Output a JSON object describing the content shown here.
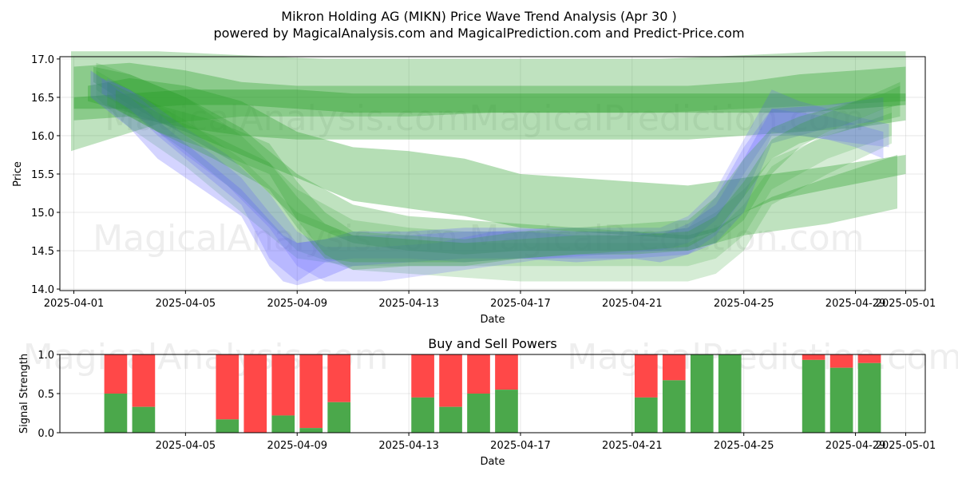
{
  "chart_data": [
    {
      "type": "area",
      "title": "Mikron Holding AG (MIKN) Price Wave Trend Analysis (Apr 30 )",
      "subtitle": "powered by MagicalAnalysis.com and MagicalPrediction.com and Predict-Price.com",
      "xlabel": "Date",
      "ylabel": "Price",
      "x_range_days": [
        -0.5,
        30.5
      ],
      "ylim": [
        13.98,
        17.03
      ],
      "x_ticks": [
        {
          "day": 0,
          "label": "2025-04-01"
        },
        {
          "day": 4,
          "label": "2025-04-05"
        },
        {
          "day": 8,
          "label": "2025-04-09"
        },
        {
          "day": 12,
          "label": "2025-04-13"
        },
        {
          "day": 16,
          "label": "2025-04-17"
        },
        {
          "day": 20,
          "label": "2025-04-21"
        },
        {
          "day": 24,
          "label": "2025-04-25"
        },
        {
          "day": 28,
          "label": "2025-04-29"
        },
        {
          "day": 29.8,
          "label": "2025-05-01"
        }
      ],
      "y_ticks": [
        {
          "value": 14.0,
          "label": "14.0"
        },
        {
          "value": 14.5,
          "label": "14.5"
        },
        {
          "value": 15.0,
          "label": "15.0"
        },
        {
          "value": 15.5,
          "label": "15.5"
        },
        {
          "value": 16.0,
          "label": "16.0"
        },
        {
          "value": 16.5,
          "label": "16.5"
        },
        {
          "value": 17.0,
          "label": "17.0"
        }
      ],
      "grid": true,
      "watermarks": [
        "MagicalAnalysis.com",
        "MagicalPrediction.com",
        "MagicalAnalysis.com",
        "MagicalPrediction.com"
      ],
      "bands": [
        {
          "color": "green",
          "opacity": 0.35,
          "x": [
            0,
            2,
            4,
            6,
            8,
            10,
            12,
            14,
            16,
            18,
            20,
            22,
            24,
            26,
            28,
            29.8
          ],
          "low": [
            16.2,
            16.25,
            16.1,
            16.0,
            15.95,
            15.95,
            15.95,
            15.95,
            15.95,
            15.95,
            15.95,
            15.95,
            16.0,
            16.05,
            16.1,
            16.2
          ],
          "high": [
            16.9,
            16.95,
            16.85,
            16.7,
            16.65,
            16.65,
            16.65,
            16.65,
            16.65,
            16.65,
            16.65,
            16.65,
            16.7,
            16.8,
            16.85,
            16.9
          ]
        },
        {
          "color": "green",
          "opacity": 0.3,
          "x": [
            -0.1,
            3,
            6,
            9,
            12,
            15,
            18,
            21,
            24,
            27,
            29.8
          ],
          "low": [
            15.8,
            16.15,
            16.25,
            16.25,
            16.25,
            16.3,
            16.3,
            16.3,
            16.35,
            16.4,
            16.45
          ],
          "high": [
            17.1,
            17.1,
            17.05,
            17.0,
            17.0,
            17.0,
            17.0,
            17.0,
            17.05,
            17.1,
            17.1
          ]
        },
        {
          "color": "green",
          "opacity": 0.4,
          "x": [
            0,
            2,
            4,
            6,
            8,
            10,
            12,
            14,
            16,
            18,
            20,
            22,
            24,
            26,
            28,
            29.8
          ],
          "low": [
            16.35,
            16.35,
            16.4,
            16.4,
            16.35,
            16.3,
            16.3,
            16.3,
            16.3,
            16.3,
            16.3,
            16.3,
            16.3,
            16.3,
            16.35,
            16.4
          ],
          "high": [
            16.5,
            16.55,
            16.6,
            16.6,
            16.6,
            16.55,
            16.55,
            16.55,
            16.55,
            16.55,
            16.55,
            16.55,
            16.55,
            16.55,
            16.55,
            16.55
          ]
        },
        {
          "color": "green",
          "opacity": 0.35,
          "x": [
            0.5,
            2,
            4,
            6,
            8,
            10,
            12,
            14,
            16,
            18,
            20,
            22,
            23,
            24,
            25,
            27,
            29.8
          ],
          "low": [
            16.45,
            16.3,
            16.05,
            15.75,
            15.45,
            15.15,
            15.05,
            14.95,
            14.8,
            14.75,
            14.7,
            14.65,
            14.75,
            15.0,
            15.15,
            15.3,
            15.5
          ],
          "high": [
            16.65,
            16.75,
            16.65,
            16.45,
            16.05,
            15.85,
            15.8,
            15.7,
            15.5,
            15.45,
            15.4,
            15.35,
            15.4,
            15.45,
            15.5,
            15.6,
            15.75
          ]
        },
        {
          "color": "green",
          "opacity": 0.3,
          "x": [
            0.7,
            2,
            4,
            6,
            8,
            10,
            12,
            14,
            16,
            18,
            20,
            22,
            23,
            24,
            25,
            27,
            29.5
          ],
          "low": [
            16.7,
            16.4,
            16.0,
            15.6,
            14.9,
            14.6,
            14.5,
            14.45,
            14.5,
            14.5,
            14.5,
            14.5,
            14.6,
            14.7,
            14.75,
            14.85,
            15.05
          ],
          "high": [
            16.9,
            16.8,
            16.5,
            16.1,
            15.5,
            15.1,
            14.95,
            14.9,
            14.85,
            14.8,
            14.75,
            14.7,
            14.8,
            15.0,
            15.2,
            15.45,
            15.75
          ]
        },
        {
          "color": "green",
          "opacity": 0.2,
          "x": [
            0.8,
            2,
            4,
            6,
            8,
            10,
            12,
            14,
            16,
            18,
            20,
            21,
            22,
            23,
            24,
            25,
            27,
            29.3
          ],
          "low": [
            16.6,
            16.3,
            15.8,
            15.2,
            14.5,
            14.25,
            14.2,
            14.15,
            14.1,
            14.1,
            14.1,
            14.1,
            14.1,
            14.2,
            14.5,
            15.1,
            15.5,
            15.9
          ],
          "high": [
            16.95,
            16.8,
            16.5,
            16.0,
            15.3,
            14.9,
            14.8,
            14.75,
            14.75,
            14.75,
            14.75,
            14.75,
            14.8,
            15.0,
            15.3,
            15.7,
            16.0,
            16.3
          ]
        },
        {
          "color": "green",
          "opacity": 0.18,
          "x": [
            0.8,
            2,
            4,
            6,
            8,
            10,
            12,
            14,
            16,
            18,
            20,
            22,
            23,
            24,
            25,
            27,
            29.3
          ],
          "low": [
            16.5,
            16.1,
            15.6,
            15.0,
            14.4,
            14.3,
            14.3,
            14.3,
            14.3,
            14.3,
            14.3,
            14.3,
            14.4,
            14.7,
            15.3,
            15.7,
            16.0
          ],
          "high": [
            16.85,
            16.6,
            16.2,
            15.7,
            15.0,
            14.7,
            14.65,
            14.6,
            14.6,
            14.6,
            14.6,
            14.6,
            14.75,
            15.1,
            15.6,
            16.05,
            16.4
          ]
        },
        {
          "color": "blue",
          "opacity": 0.25,
          "x": [
            0.6,
            2,
            3,
            4,
            5,
            6,
            7,
            7.5,
            8,
            9,
            10,
            12,
            14,
            16,
            18,
            20,
            21,
            22,
            23,
            24,
            25,
            27,
            29
          ],
          "low": [
            16.5,
            16.1,
            15.7,
            15.45,
            15.2,
            14.95,
            14.3,
            14.1,
            14.05,
            14.15,
            14.3,
            14.35,
            14.4,
            14.4,
            14.35,
            14.4,
            14.35,
            14.45,
            14.6,
            15.0,
            15.9,
            16.1,
            16.2
          ],
          "high": [
            16.85,
            16.5,
            16.2,
            15.9,
            15.6,
            15.3,
            14.9,
            14.7,
            14.6,
            14.65,
            14.75,
            14.75,
            14.8,
            14.8,
            14.75,
            14.75,
            14.7,
            14.85,
            15.1,
            15.7,
            16.35,
            16.4,
            16.5
          ]
        },
        {
          "color": "blue",
          "opacity": 0.22,
          "x": [
            1,
            2,
            3,
            4,
            5,
            6,
            7,
            8,
            9,
            10,
            12,
            14,
            16,
            18,
            20,
            22,
            23,
            24,
            25,
            26,
            27,
            28,
            29
          ],
          "low": [
            16.55,
            16.35,
            16.0,
            15.7,
            15.4,
            15.1,
            14.4,
            14.1,
            14.35,
            14.4,
            14.4,
            14.35,
            14.4,
            14.4,
            14.4,
            14.45,
            14.7,
            15.2,
            16.0,
            16.0,
            15.95,
            15.85,
            15.7
          ],
          "high": [
            16.75,
            16.6,
            16.3,
            16.0,
            15.75,
            15.45,
            15.0,
            14.6,
            14.65,
            14.7,
            14.7,
            14.75,
            14.75,
            14.7,
            14.7,
            14.8,
            15.2,
            15.85,
            16.35,
            16.3,
            16.25,
            16.15,
            16.05
          ]
        },
        {
          "color": "blue",
          "opacity": 0.2,
          "x": [
            1.2,
            2.5,
            4,
            5.5,
            7,
            8,
            9,
            11,
            13,
            15,
            17,
            19,
            21,
            22,
            23,
            24,
            25,
            26,
            27,
            28,
            29.2
          ],
          "low": [
            16.55,
            16.2,
            15.75,
            15.35,
            14.8,
            14.3,
            14.1,
            14.1,
            14.2,
            14.3,
            14.4,
            14.45,
            14.5,
            14.6,
            14.9,
            15.5,
            16.05,
            16.0,
            15.95,
            15.9,
            15.85
          ],
          "high": [
            16.75,
            16.5,
            16.1,
            15.75,
            15.25,
            14.75,
            14.55,
            14.55,
            14.6,
            14.75,
            14.8,
            14.8,
            14.8,
            14.95,
            15.3,
            15.95,
            16.6,
            16.45,
            16.35,
            16.25,
            16.15
          ]
        },
        {
          "color": "green",
          "opacity": 0.25,
          "x": [
            1.2,
            3,
            5,
            7,
            8,
            9,
            10,
            12,
            14,
            16,
            18,
            20,
            22,
            23,
            24,
            25,
            26,
            27,
            28,
            29,
            29.6
          ],
          "low": [
            16.4,
            16.05,
            15.8,
            15.5,
            14.9,
            14.45,
            14.25,
            14.3,
            14.3,
            14.4,
            14.45,
            14.5,
            14.55,
            14.75,
            15.2,
            15.7,
            15.9,
            16.0,
            16.1,
            16.2,
            16.25
          ],
          "high": [
            16.7,
            16.4,
            16.2,
            15.9,
            15.4,
            15.0,
            14.75,
            14.7,
            14.65,
            14.75,
            14.8,
            14.85,
            14.9,
            15.2,
            15.7,
            16.1,
            16.25,
            16.35,
            16.45,
            16.55,
            16.65
          ]
        },
        {
          "color": "green",
          "opacity": 0.25,
          "x": [
            1.5,
            3,
            5,
            7,
            8,
            9,
            10,
            12,
            14,
            16,
            18,
            20,
            22,
            23,
            24,
            25,
            26,
            27,
            28,
            29,
            29.6
          ],
          "low": [
            16.35,
            16.05,
            15.7,
            15.3,
            14.8,
            14.4,
            14.35,
            14.35,
            14.35,
            14.4,
            14.45,
            14.45,
            14.5,
            14.6,
            14.9,
            15.5,
            15.85,
            16.05,
            16.2,
            16.35,
            16.4
          ],
          "high": [
            16.6,
            16.3,
            16.0,
            15.65,
            15.2,
            14.85,
            14.7,
            14.65,
            14.6,
            14.65,
            14.7,
            14.7,
            14.75,
            14.95,
            15.4,
            15.95,
            16.15,
            16.3,
            16.45,
            16.6,
            16.7
          ]
        }
      ]
    },
    {
      "type": "bar",
      "title": "Buy and Sell Powers",
      "xlabel": "Date",
      "ylabel": "Signal Strength",
      "ylim": [
        0,
        1
      ],
      "x_range_days": [
        -0.5,
        30.5
      ],
      "y_ticks": [
        {
          "value": 0.0,
          "label": "0.0"
        },
        {
          "value": 0.5,
          "label": "0.5"
        },
        {
          "value": 1.0,
          "label": "1.0"
        }
      ],
      "x_ticks": [
        {
          "day": 4,
          "label": "2025-04-05"
        },
        {
          "day": 8,
          "label": "2025-04-09"
        },
        {
          "day": 12,
          "label": "2025-04-13"
        },
        {
          "day": 16,
          "label": "2025-04-17"
        },
        {
          "day": 20,
          "label": "2025-04-21"
        },
        {
          "day": 24,
          "label": "2025-04-25"
        },
        {
          "day": 28,
          "label": "2025-04-29"
        },
        {
          "day": 29.8,
          "label": "2025-05-01"
        }
      ],
      "grid": true,
      "watermark": "MagicalAnalysis.com                MagicalPrediction.com",
      "series": [
        {
          "name": "Buy",
          "color": "#4ba84b"
        },
        {
          "name": "Sell",
          "color": "#ff4848"
        }
      ],
      "bars": [
        {
          "date": "2025-04-02",
          "day": 1.5,
          "buy": 0.5
        },
        {
          "date": "2025-04-03",
          "day": 2.5,
          "buy": 0.33
        },
        {
          "date": "2025-04-06",
          "day": 5.5,
          "buy": 0.17
        },
        {
          "date": "2025-04-07",
          "day": 6.5,
          "buy": 0.0
        },
        {
          "date": "2025-04-08",
          "day": 7.5,
          "buy": 0.22
        },
        {
          "date": "2025-04-09",
          "day": 8.5,
          "buy": 0.06
        },
        {
          "date": "2025-04-10",
          "day": 9.5,
          "buy": 0.39
        },
        {
          "date": "2025-04-13",
          "day": 12.5,
          "buy": 0.45
        },
        {
          "date": "2025-04-14",
          "day": 13.5,
          "buy": 0.33
        },
        {
          "date": "2025-04-15",
          "day": 14.5,
          "buy": 0.5
        },
        {
          "date": "2025-04-16",
          "day": 15.5,
          "buy": 0.55
        },
        {
          "date": "2025-04-21",
          "day": 20.5,
          "buy": 0.45
        },
        {
          "date": "2025-04-22",
          "day": 21.5,
          "buy": 0.67
        },
        {
          "date": "2025-04-23",
          "day": 22.5,
          "buy": 1.0
        },
        {
          "date": "2025-04-24",
          "day": 23.5,
          "buy": 1.0
        },
        {
          "date": "2025-04-27",
          "day": 26.5,
          "buy": 0.93
        },
        {
          "date": "2025-04-28",
          "day": 27.5,
          "buy": 0.83
        },
        {
          "date": "2025-04-29",
          "day": 28.5,
          "buy": 0.89
        }
      ]
    }
  ]
}
